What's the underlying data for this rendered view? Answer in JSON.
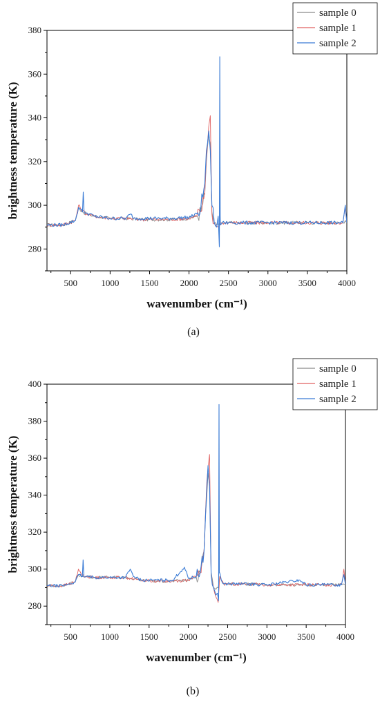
{
  "chart_data": [
    {
      "type": "line",
      "panel_label": "(a)",
      "xlabel": "wavenumber (cm⁻¹)",
      "ylabel": "brightness temperature (K)",
      "xlim": [
        200,
        4000
      ],
      "ylim": [
        270,
        380
      ],
      "xticks": [
        500,
        1000,
        1500,
        2000,
        2500,
        3000,
        3500,
        4000
      ],
      "yticks": [
        280,
        300,
        320,
        340,
        360,
        380
      ],
      "legend_position": "top-right",
      "series": [
        {
          "name": "sample 0",
          "color": "#8a8a8a",
          "x": [
            200,
            400,
            560,
            600,
            650,
            700,
            800,
            1000,
            1200,
            1400,
            1600,
            1800,
            2000,
            2100,
            2150,
            2200,
            2220,
            2250,
            2270,
            2290,
            2320,
            2350,
            2380,
            2400,
            2420,
            2450,
            2500,
            2700,
            3000,
            3500,
            3950,
            3980,
            4000
          ],
          "y": [
            291,
            291,
            293,
            299,
            297,
            296,
            295,
            294,
            294,
            293.5,
            293.5,
            293.5,
            294,
            295,
            297,
            305,
            320,
            332,
            328,
            297,
            292,
            291,
            291,
            292,
            292,
            292,
            292,
            292,
            292,
            292,
            292,
            293,
            292
          ]
        },
        {
          "name": "sample 1",
          "color": "#e06060",
          "x": [
            200,
            400,
            560,
            600,
            650,
            700,
            800,
            1000,
            1200,
            1400,
            1600,
            1800,
            2000,
            2100,
            2150,
            2200,
            2220,
            2250,
            2270,
            2290,
            2320,
            2350,
            2380,
            2400,
            2420,
            2450,
            2500,
            2700,
            3000,
            3500,
            3950,
            3980,
            4000
          ],
          "y": [
            291,
            291,
            293,
            300,
            297.5,
            296,
            295,
            294,
            294,
            293.5,
            293.5,
            293.5,
            294,
            295,
            297,
            306,
            322,
            336,
            341,
            296,
            292,
            290,
            290,
            292,
            292,
            292,
            292,
            292,
            292,
            292,
            292,
            299,
            292
          ]
        },
        {
          "name": "sample 2",
          "color": "#3a7bd5",
          "x": [
            200,
            400,
            560,
            600,
            650,
            660,
            670,
            700,
            800,
            1000,
            1200,
            1260,
            1300,
            1400,
            1600,
            1800,
            2000,
            2100,
            2150,
            2200,
            2220,
            2250,
            2270,
            2290,
            2320,
            2350,
            2370,
            2385,
            2390,
            2395,
            2400,
            2420,
            2450,
            2500,
            2700,
            3000,
            3500,
            3950,
            3980,
            4000
          ],
          "y": [
            291,
            291,
            293,
            299,
            297,
            306,
            297,
            296.5,
            295,
            294,
            294,
            296,
            294,
            294,
            294,
            294,
            294.5,
            296,
            299,
            310,
            325,
            334,
            325,
            300,
            292,
            290,
            295,
            281,
            368,
            295,
            291,
            292,
            292,
            292,
            292,
            292,
            292,
            292,
            300,
            292
          ]
        }
      ]
    },
    {
      "type": "line",
      "panel_label": "(b)",
      "xlabel": "wavenumber (cm⁻¹)",
      "ylabel": "brightness temperature (K)",
      "xlim": [
        200,
        4000
      ],
      "ylim": [
        270,
        400
      ],
      "xticks": [
        500,
        1000,
        1500,
        2000,
        2500,
        3000,
        3500,
        4000
      ],
      "yticks": [
        280,
        300,
        320,
        340,
        360,
        380,
        400
      ],
      "legend_position": "top-right",
      "series": [
        {
          "name": "sample 0",
          "color": "#8a8a8a",
          "x": [
            200,
            400,
            560,
            600,
            650,
            700,
            800,
            1000,
            1200,
            1400,
            1600,
            1800,
            2000,
            2100,
            2150,
            2200,
            2220,
            2250,
            2270,
            2290,
            2320,
            2350,
            2380,
            2400,
            2420,
            2450,
            2500,
            2700,
            3000,
            3500,
            3950,
            3980,
            4000
          ],
          "y": [
            291,
            291,
            293,
            297,
            296,
            296,
            295.5,
            295.5,
            295.5,
            294,
            293.5,
            293.5,
            294,
            296,
            298,
            310,
            330,
            352,
            345,
            298,
            290,
            289,
            290,
            296,
            294,
            292,
            292,
            292,
            291.5,
            291.5,
            291.5,
            292,
            291.5
          ]
        },
        {
          "name": "sample 1",
          "color": "#e06060",
          "x": [
            200,
            400,
            560,
            600,
            650,
            700,
            800,
            1000,
            1200,
            1400,
            1600,
            1800,
            2000,
            2100,
            2150,
            2200,
            2220,
            2250,
            2270,
            2290,
            2320,
            2350,
            2380,
            2400,
            2420,
            2450,
            2500,
            2700,
            3000,
            3500,
            3950,
            3980,
            4000
          ],
          "y": [
            291,
            291,
            293,
            300,
            296.5,
            296,
            295.5,
            295.5,
            295.5,
            294,
            293.5,
            293.5,
            294,
            296,
            298,
            311,
            332,
            355,
            362,
            297,
            290,
            285,
            282,
            296,
            294,
            292,
            292,
            292,
            291.5,
            291.5,
            291.5,
            300,
            291.5
          ]
        },
        {
          "name": "sample 2",
          "color": "#3a7bd5",
          "x": [
            200,
            400,
            560,
            600,
            650,
            660,
            670,
            700,
            800,
            1000,
            1200,
            1260,
            1300,
            1400,
            1600,
            1800,
            1950,
            2000,
            2100,
            2150,
            2200,
            2220,
            2250,
            2270,
            2290,
            2320,
            2350,
            2370,
            2385,
            2390,
            2395,
            2400,
            2420,
            2450,
            2500,
            2700,
            3000,
            3420,
            3500,
            3950,
            3980,
            4000
          ],
          "y": [
            291,
            291,
            293,
            297,
            296,
            305,
            296,
            296,
            295.5,
            295.5,
            295.5,
            300,
            296,
            294,
            294,
            294,
            301,
            295,
            296,
            298,
            310,
            330,
            356,
            345,
            297,
            290,
            286,
            287,
            283,
            389,
            298,
            298,
            294,
            292,
            292,
            292,
            291.5,
            294,
            291.5,
            291.5,
            297,
            291.5
          ]
        }
      ]
    }
  ]
}
